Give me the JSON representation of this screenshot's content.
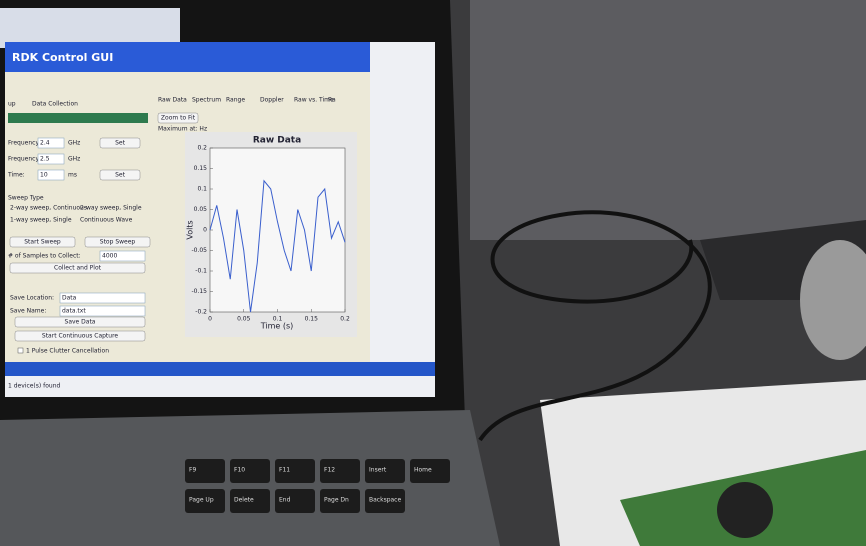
{
  "window": {
    "title": "RDK Control GUI"
  },
  "left_panel": {
    "tabs": [
      "up",
      "Data Collection"
    ],
    "fields": [
      {
        "label": "Frequency:",
        "value": "2.4",
        "unit": "GHz",
        "button": "Set"
      },
      {
        "label": "Frequency:",
        "value": "2.5",
        "unit": "GHz"
      },
      {
        "label": "Time:",
        "value": "10",
        "unit": "ms",
        "button": "Set"
      }
    ],
    "sweep_type": {
      "title": "Sweep Type",
      "options": [
        "2-way sweep, Continuous",
        "2-way sweep, Single",
        "1-way sweep, Single",
        "Continuous Wave"
      ]
    },
    "buttons": [
      "Start Sweep",
      "Stop Sweep"
    ],
    "samples": {
      "label": "# of Samples to Collect:",
      "value": "4000"
    },
    "collect": "Collect and Plot",
    "save_location": {
      "label": "Save Location:",
      "value": "Data"
    },
    "save_name": {
      "label": "Save Name:",
      "value": "data.txt"
    },
    "save": "Save Data",
    "capture": "Start Continuous Capture",
    "checkbox": "1 Pulse Clutter Cancellation"
  },
  "right_panel": {
    "tabs": [
      "Raw Data",
      "Spectrum",
      "Range",
      "Doppler",
      "Raw vs. Time",
      "Ra"
    ],
    "zoom": "Zoom to Fit",
    "info": "Maximum at: Hz"
  },
  "chart": {
    "type": "line",
    "title": "Raw Data",
    "x_label": "Time (s)",
    "y_label": "Volts",
    "xlim": [
      0,
      0.2
    ],
    "ylim": [
      -0.2,
      0.2
    ],
    "xticks": [
      0,
      0.05,
      0.1,
      0.15,
      0.2
    ],
    "yticks": [
      0.2,
      0.15,
      0.1,
      0.05,
      0,
      -0.05,
      -0.1,
      -0.15,
      -0.2
    ],
    "x": [
      0,
      0.01,
      0.02,
      0.03,
      0.04,
      0.05,
      0.06,
      0.07,
      0.08,
      0.09,
      0.1,
      0.11,
      0.12,
      0.13,
      0.14,
      0.15,
      0.16,
      0.17,
      0.18,
      0.19,
      0.2
    ],
    "values": [
      0.0,
      0.06,
      -0.02,
      -0.12,
      0.05,
      -0.05,
      -0.2,
      -0.08,
      0.12,
      0.1,
      0.02,
      -0.05,
      -0.1,
      0.05,
      0.0,
      -0.1,
      0.08,
      0.1,
      -0.02,
      0.02,
      -0.03
    ],
    "color": "#3a5fcd"
  },
  "status": "1 device(s) found",
  "keyboard": [
    "F9",
    "F10",
    "F11",
    "F12",
    "Insert",
    "Home",
    "Page Up",
    "Delete",
    "End",
    "Page Dn",
    "Backspace"
  ]
}
